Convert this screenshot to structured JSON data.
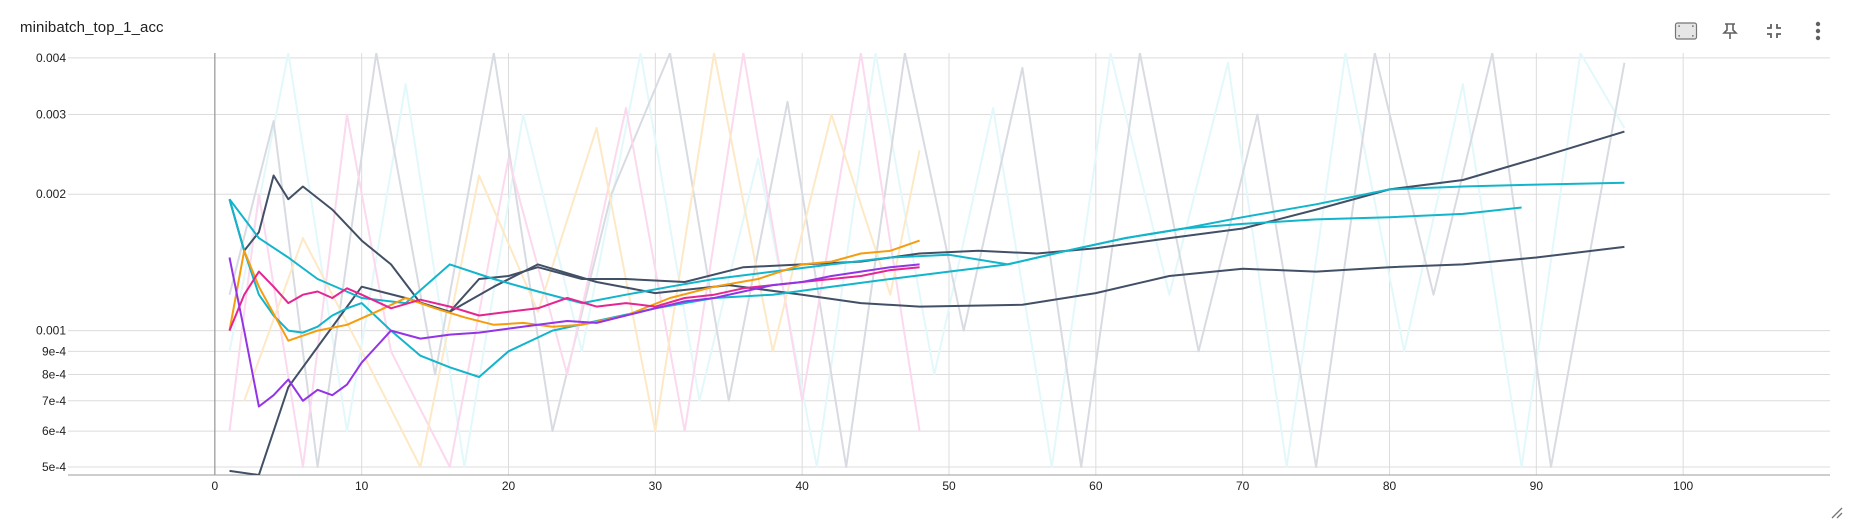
{
  "card": {
    "title": "minibatch_top_1_acc"
  },
  "toolbar": {
    "items": [
      {
        "icon": "fit-domain-icon"
      },
      {
        "icon": "pin-icon"
      },
      {
        "icon": "collapse-icon"
      },
      {
        "icon": "more-vert-icon"
      }
    ]
  },
  "chart_data": {
    "type": "line",
    "title": "minibatch_top_1_acc",
    "xlabel": "",
    "ylabel": "",
    "xlim": [
      -10,
      110
    ],
    "ylim": [
      0.00048,
      0.0041
    ],
    "y_scale": "log",
    "grid": true,
    "x_ticks": [
      0,
      10,
      20,
      30,
      40,
      50,
      60,
      70,
      80,
      90,
      100
    ],
    "x_tick_labels": [
      "0",
      "10",
      "20",
      "30",
      "40",
      "50",
      "60",
      "70",
      "80",
      "90",
      "100"
    ],
    "y_ticks": [
      0.0005,
      0.0006,
      0.0007,
      0.0008,
      0.0009,
      0.001,
      0.002,
      0.003,
      0.004
    ],
    "y_tick_labels": [
      "5e-4",
      "6e-4",
      "7e-4",
      "8e-4",
      "9e-4",
      "0.001",
      "0.002",
      "0.003",
      "0.004"
    ],
    "series": [
      {
        "color": "#425066",
        "x": [
          1,
          3,
          5,
          7,
          10,
          13,
          16,
          19,
          22,
          26,
          30,
          35,
          40,
          44,
          48,
          55,
          60,
          65,
          70,
          75,
          80,
          85,
          90,
          96
        ],
        "y": [
          0.00049,
          0.00048,
          0.00075,
          0.00092,
          0.00125,
          0.00118,
          0.0011,
          0.00125,
          0.0014,
          0.00128,
          0.00121,
          0.00126,
          0.0012,
          0.00115,
          0.00113,
          0.00114,
          0.00121,
          0.00132,
          0.00137,
          0.00135,
          0.00138,
          0.0014,
          0.00145,
          0.00153
        ]
      },
      {
        "color": "#425066",
        "x": [
          1,
          2,
          3,
          4,
          5,
          6,
          8,
          10,
          12,
          14,
          16,
          18,
          20,
          22,
          25,
          28,
          32,
          36,
          40,
          44,
          48,
          52,
          56,
          60,
          65,
          70,
          75,
          80,
          85,
          90,
          96
        ],
        "y": [
          0.00195,
          0.0015,
          0.00165,
          0.0022,
          0.00195,
          0.00208,
          0.00185,
          0.00158,
          0.0014,
          0.00115,
          0.0011,
          0.0013,
          0.00132,
          0.00138,
          0.0013,
          0.0013,
          0.00128,
          0.00138,
          0.0014,
          0.00142,
          0.00148,
          0.0015,
          0.00148,
          0.00152,
          0.0016,
          0.00168,
          0.00185,
          0.00205,
          0.00215,
          0.0024,
          0.00275
        ]
      },
      {
        "color": "#12b5cb",
        "x": [
          1,
          2,
          3,
          4,
          5,
          6,
          7,
          8,
          9,
          10,
          12,
          14,
          16,
          18,
          20,
          23,
          26,
          30,
          34,
          38,
          42,
          46,
          50,
          54,
          58,
          62,
          66,
          70,
          75,
          80,
          85,
          89
        ],
        "y": [
          0.00195,
          0.0015,
          0.0012,
          0.00108,
          0.001,
          0.00099,
          0.00102,
          0.00108,
          0.00112,
          0.00115,
          0.001,
          0.00088,
          0.00083,
          0.00079,
          0.0009,
          0.001,
          0.00105,
          0.00112,
          0.00118,
          0.0012,
          0.00125,
          0.0013,
          0.00135,
          0.0014,
          0.0015,
          0.0016,
          0.00168,
          0.00172,
          0.00176,
          0.00178,
          0.00181,
          0.00187
        ]
      },
      {
        "color": "#12b5cb",
        "x": [
          1,
          3,
          5,
          7,
          10,
          13,
          16,
          19,
          22,
          25,
          28,
          31,
          34,
          38,
          42,
          46,
          50,
          54,
          58,
          62,
          66,
          70,
          75,
          80,
          85,
          90,
          96
        ],
        "y": [
          0.00195,
          0.0016,
          0.00145,
          0.0013,
          0.00118,
          0.00115,
          0.0014,
          0.0013,
          0.00122,
          0.00115,
          0.0012,
          0.00125,
          0.0013,
          0.00135,
          0.0014,
          0.00145,
          0.00147,
          0.0014,
          0.0015,
          0.0016,
          0.00168,
          0.00178,
          0.0019,
          0.00205,
          0.00208,
          0.0021,
          0.00212
        ]
      },
      {
        "color": "#f59d0e",
        "x": [
          1,
          2,
          3,
          5,
          7,
          9,
          11,
          13,
          15,
          17,
          19,
          21,
          23,
          25,
          28,
          31,
          34,
          37,
          40,
          42,
          44,
          46,
          48
        ],
        "y": [
          0.001,
          0.0015,
          0.00125,
          0.00095,
          0.001,
          0.00103,
          0.0011,
          0.00118,
          0.00112,
          0.00107,
          0.00103,
          0.00104,
          0.00102,
          0.00103,
          0.00108,
          0.00118,
          0.00125,
          0.0013,
          0.0014,
          0.00142,
          0.00148,
          0.0015,
          0.00158
        ]
      },
      {
        "color": "#e52592",
        "x": [
          1,
          2,
          3,
          4,
          5,
          6,
          7,
          8,
          9,
          10,
          12,
          14,
          16,
          18,
          20,
          22,
          24,
          26,
          28,
          30,
          32,
          34,
          36,
          38,
          40,
          42,
          44,
          46,
          48
        ],
        "y": [
          0.001,
          0.0012,
          0.00135,
          0.00125,
          0.00115,
          0.0012,
          0.00122,
          0.00118,
          0.00124,
          0.0012,
          0.00112,
          0.00117,
          0.00113,
          0.00108,
          0.0011,
          0.00112,
          0.00118,
          0.00113,
          0.00115,
          0.00113,
          0.00118,
          0.0012,
          0.00124,
          0.00126,
          0.00128,
          0.0013,
          0.00132,
          0.00136,
          0.00138
        ]
      },
      {
        "color": "#9334e6",
        "x": [
          1,
          2,
          3,
          4,
          5,
          6,
          7,
          8,
          9,
          10,
          12,
          14,
          16,
          18,
          20,
          22,
          24,
          26,
          28,
          30,
          32,
          34,
          36,
          38,
          40,
          42,
          44,
          46,
          48
        ],
        "y": [
          0.00145,
          0.001,
          0.00068,
          0.00072,
          0.00078,
          0.0007,
          0.00074,
          0.00072,
          0.00076,
          0.00085,
          0.001,
          0.00096,
          0.00098,
          0.00099,
          0.00101,
          0.00103,
          0.00105,
          0.00104,
          0.00108,
          0.00112,
          0.00116,
          0.00118,
          0.00122,
          0.00126,
          0.00128,
          0.00132,
          0.00135,
          0.00138,
          0.0014
        ]
      }
    ],
    "background_runs": [
      {
        "color": "#e3f8fb",
        "x": [
          1,
          5,
          9,
          13,
          17,
          21,
          25,
          29,
          33,
          37,
          41,
          45,
          49,
          53,
          57,
          61,
          65,
          69,
          73,
          77,
          81,
          85,
          89,
          93,
          96
        ],
        "y": [
          0.0009,
          0.0041,
          0.0006,
          0.0035,
          0.0005,
          0.003,
          0.0009,
          0.0041,
          0.0007,
          0.0024,
          0.0005,
          0.0041,
          0.0008,
          0.0031,
          0.0005,
          0.0041,
          0.0012,
          0.0039,
          0.0005,
          0.0041,
          0.0009,
          0.0035,
          0.0005,
          0.0041,
          0.0028
        ]
      },
      {
        "color": "#d8dbe1",
        "x": [
          1,
          4,
          7,
          11,
          15,
          19,
          23,
          27,
          31,
          35,
          39,
          43,
          47,
          51,
          55,
          59,
          63,
          67,
          71,
          75,
          79,
          83,
          87,
          91,
          96
        ],
        "y": [
          0.0012,
          0.0029,
          0.0005,
          0.0041,
          0.0008,
          0.0041,
          0.0006,
          0.002,
          0.0041,
          0.0007,
          0.0032,
          0.0005,
          0.0041,
          0.001,
          0.0038,
          0.0005,
          0.0041,
          0.0009,
          0.003,
          0.0005,
          0.0041,
          0.0012,
          0.0041,
          0.0005,
          0.0039
        ]
      },
      {
        "color": "#fbd9ee",
        "x": [
          1,
          3,
          6,
          9,
          12,
          16,
          20,
          24,
          28,
          32,
          36,
          40,
          44,
          48
        ],
        "y": [
          0.0006,
          0.002,
          0.0005,
          0.003,
          0.0009,
          0.0005,
          0.0024,
          0.0008,
          0.0031,
          0.0006,
          0.0041,
          0.0007,
          0.0041,
          0.0006
        ]
      },
      {
        "color": "#fde9c6",
        "x": [
          2,
          6,
          10,
          14,
          18,
          22,
          26,
          30,
          34,
          38,
          42,
          46,
          48
        ],
        "y": [
          0.0007,
          0.0016,
          0.0009,
          0.0005,
          0.0022,
          0.0011,
          0.0028,
          0.0006,
          0.0041,
          0.0009,
          0.003,
          0.0012,
          0.0025
        ]
      }
    ]
  }
}
